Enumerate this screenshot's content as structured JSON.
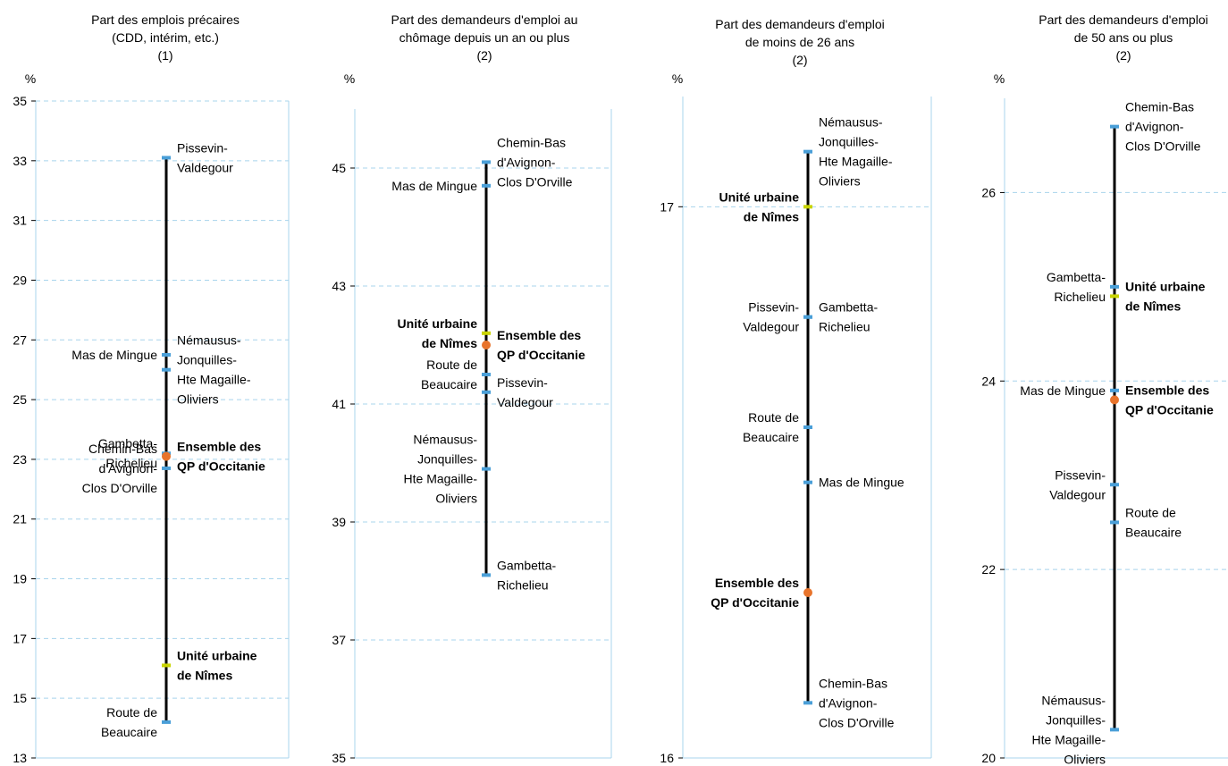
{
  "colors": {
    "range_line": "#000000",
    "qp_marker": "#4a9fd8",
    "unite_urbaine_marker": "#c9d400",
    "ensemble_marker": "#e8742c",
    "gridline": "#a8d4ec",
    "axis": "#a8d4ec"
  },
  "chart_data": [
    {
      "type": "range",
      "title": [
        "Part des emplois précaires",
        "(CDD, intérim, etc.)",
        "(1)"
      ],
      "ylabel": "%",
      "ylim": [
        13,
        35
      ],
      "ticks": [
        13,
        15,
        17,
        19,
        21,
        23,
        25,
        27,
        29,
        31,
        33,
        35
      ],
      "points": [
        {
          "name": [
            "Pissevin-",
            "Valdegour"
          ],
          "value": 33.1,
          "kind": "qp",
          "side": "right"
        },
        {
          "name": [
            "Mas de Mingue"
          ],
          "value": 26.5,
          "kind": "qp",
          "side": "left"
        },
        {
          "name": [
            "Némausus-",
            "Jonquilles-",
            "Hte Magaille-",
            "Oliviers"
          ],
          "value": 26.0,
          "kind": "qp",
          "side": "right"
        },
        {
          "name": [
            "Gambetta-",
            "Richelieu"
          ],
          "value": 23.2,
          "kind": "qp",
          "side": "left"
        },
        {
          "name": [
            "Ensemble des",
            "QP d'Occitanie"
          ],
          "value": 23.1,
          "kind": "ensemble",
          "side": "right"
        },
        {
          "name": [
            "Chemin-Bas",
            "d'Avignon-",
            "Clos D'Orville"
          ],
          "value": 22.7,
          "kind": "qp",
          "side": "left"
        },
        {
          "name": [
            "Unité urbaine",
            "de Nîmes"
          ],
          "value": 16.1,
          "kind": "unite",
          "side": "right"
        },
        {
          "name": [
            "Route de",
            "Beaucaire"
          ],
          "value": 14.2,
          "kind": "qp",
          "side": "left"
        }
      ]
    },
    {
      "type": "range",
      "title": [
        "Part des demandeurs d'emploi au",
        "chômage depuis un an ou plus",
        "(2)"
      ],
      "ylabel": "%",
      "ylim": [
        35,
        46
      ],
      "ticks": [
        35,
        37,
        39,
        41,
        43,
        45
      ],
      "points": [
        {
          "name": [
            "Chemin-Bas",
            "d'Avignon-",
            "Clos D'Orville"
          ],
          "value": 45.1,
          "kind": "qp",
          "side": "right"
        },
        {
          "name": [
            "Mas de Mingue"
          ],
          "value": 44.7,
          "kind": "qp",
          "side": "left"
        },
        {
          "name": [
            "Unité urbaine",
            "de Nîmes"
          ],
          "value": 42.2,
          "kind": "unite",
          "side": "left"
        },
        {
          "name": [
            "Ensemble des",
            "QP d'Occitanie"
          ],
          "value": 42.0,
          "kind": "ensemble",
          "side": "right"
        },
        {
          "name": [
            "Route de",
            "Beaucaire"
          ],
          "value": 41.5,
          "kind": "qp",
          "side": "left"
        },
        {
          "name": [
            "Pissevin-",
            "Valdegour"
          ],
          "value": 41.2,
          "kind": "qp",
          "side": "right"
        },
        {
          "name": [
            "Némausus-",
            "Jonquilles-",
            "Hte Magaille-",
            "Oliviers"
          ],
          "value": 39.9,
          "kind": "qp",
          "side": "left"
        },
        {
          "name": [
            "Gambetta-",
            "Richelieu"
          ],
          "value": 38.1,
          "kind": "qp",
          "side": "right"
        }
      ]
    },
    {
      "type": "range",
      "title": [
        "Part des demandeurs d'emploi",
        "de moins de 26 ans",
        "(2)"
      ],
      "ylabel": "%",
      "ylim": [
        16,
        17.2
      ],
      "ticks": [
        16,
        17
      ],
      "points": [
        {
          "name": [
            "Némausus-",
            "Jonquilles-",
            "Hte Magaille-",
            "Oliviers"
          ],
          "value": 17.1,
          "kind": "qp",
          "side": "right"
        },
        {
          "name": [
            "Unité urbaine",
            "de Nîmes"
          ],
          "value": 17.0,
          "kind": "unite",
          "side": "left"
        },
        {
          "name": [
            "Pissevin-",
            "Valdegour"
          ],
          "value": 16.8,
          "kind": "qp",
          "side": "left"
        },
        {
          "name": [
            "Gambetta-",
            "Richelieu"
          ],
          "value": 16.8,
          "kind": "qp",
          "side": "right"
        },
        {
          "name": [
            "Route de",
            "Beaucaire"
          ],
          "value": 16.6,
          "kind": "qp",
          "side": "left"
        },
        {
          "name": [
            "Mas de Mingue"
          ],
          "value": 16.5,
          "kind": "qp",
          "side": "right"
        },
        {
          "name": [
            "Ensemble des",
            "QP d'Occitanie"
          ],
          "value": 16.3,
          "kind": "ensemble",
          "side": "left"
        },
        {
          "name": [
            "Chemin-Bas",
            "d'Avignon-",
            "Clos D'Orville"
          ],
          "value": 16.1,
          "kind": "qp",
          "side": "right"
        }
      ]
    },
    {
      "type": "range",
      "title": [
        "Part des demandeurs d'emploi",
        "de 50 ans ou plus",
        "(2)"
      ],
      "ylabel": "%",
      "ylim": [
        20,
        27
      ],
      "ticks": [
        20,
        22,
        24,
        26
      ],
      "points": [
        {
          "name": [
            "Chemin-Bas",
            "d'Avignon-",
            "Clos D'Orville"
          ],
          "value": 26.7,
          "kind": "qp",
          "side": "right"
        },
        {
          "name": [
            "Gambetta-",
            "Richelieu"
          ],
          "value": 25.0,
          "kind": "qp",
          "side": "left"
        },
        {
          "name": [
            "Unité urbaine",
            "de Nîmes"
          ],
          "value": 24.9,
          "kind": "unite",
          "side": "right"
        },
        {
          "name": [
            "Mas de Mingue"
          ],
          "value": 23.9,
          "kind": "qp",
          "side": "left"
        },
        {
          "name": [
            "Ensemble des",
            "QP d'Occitanie"
          ],
          "value": 23.8,
          "kind": "ensemble",
          "side": "right"
        },
        {
          "name": [
            "Pissevin-",
            "Valdegour"
          ],
          "value": 22.9,
          "kind": "qp",
          "side": "left"
        },
        {
          "name": [
            "Route de",
            "Beaucaire"
          ],
          "value": 22.5,
          "kind": "qp",
          "side": "right"
        },
        {
          "name": [
            "Némausus-",
            "Jonquilles-",
            "Hte Magaille-",
            "Oliviers"
          ],
          "value": 20.3,
          "kind": "qp",
          "side": "left"
        }
      ]
    }
  ]
}
